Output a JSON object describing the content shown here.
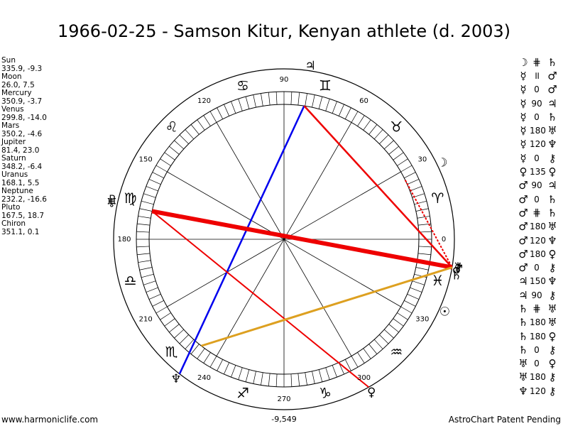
{
  "title": "1966-02-25 - Samson Kitur, Kenyan athlete (d. 2003)",
  "footer_left": "www.harmoniclife.com",
  "footer_right": "AstroChart Patent Pending",
  "footer_center": "-9,549",
  "planets": [
    {
      "name": "Sun",
      "values": "335.9, -9.3"
    },
    {
      "name": "Moon",
      "values": "26.0, 7.5"
    },
    {
      "name": "Mercury",
      "values": "350.9, -3.7"
    },
    {
      "name": "Venus",
      "values": "299.8, -14.0"
    },
    {
      "name": "Mars",
      "values": "350.2, -4.6"
    },
    {
      "name": "Jupiter",
      "values": "81.4, 23.0"
    },
    {
      "name": "Saturn",
      "values": "348.2, -6.4"
    },
    {
      "name": "Uranus",
      "values": "168.1, 5.5"
    },
    {
      "name": "Neptune",
      "values": "232.2, -16.6"
    },
    {
      "name": "Pluto",
      "values": "167.5, 18.7"
    },
    {
      "name": "Chiron",
      "values": "351.1, 0.1"
    }
  ],
  "degree_labels": [
    {
      "deg": 0,
      "text": "0"
    },
    {
      "deg": 30,
      "text": "30"
    },
    {
      "deg": 60,
      "text": "60"
    },
    {
      "deg": 90,
      "text": "90"
    },
    {
      "deg": 120,
      "text": "120"
    },
    {
      "deg": 150,
      "text": "150"
    },
    {
      "deg": 180,
      "text": "180"
    },
    {
      "deg": 210,
      "text": "210"
    },
    {
      "deg": 240,
      "text": "240"
    },
    {
      "deg": 270,
      "text": "270"
    },
    {
      "deg": 300,
      "text": "300"
    },
    {
      "deg": 330,
      "text": "330"
    }
  ],
  "zodiac_signs": [
    {
      "deg": 15,
      "glyph": "♈"
    },
    {
      "deg": 45,
      "glyph": "♉"
    },
    {
      "deg": 75,
      "glyph": "♊"
    },
    {
      "deg": 105,
      "glyph": "♋"
    },
    {
      "deg": 135,
      "glyph": "♌"
    },
    {
      "deg": 165,
      "glyph": "♍"
    },
    {
      "deg": 195,
      "glyph": "♎"
    },
    {
      "deg": 225,
      "glyph": "♏"
    },
    {
      "deg": 255,
      "glyph": "♐"
    },
    {
      "deg": 285,
      "glyph": "♑"
    },
    {
      "deg": 315,
      "glyph": "♒"
    },
    {
      "deg": 345,
      "glyph": "♓"
    }
  ],
  "planet_glyphs": [
    {
      "deg": 26.0,
      "glyph": "☽"
    },
    {
      "deg": 81.4,
      "glyph": "♃"
    },
    {
      "deg": 168.0,
      "glyph": "♅"
    },
    {
      "deg": 167.0,
      "glyph": "♇"
    },
    {
      "deg": 232.2,
      "glyph": "♆"
    },
    {
      "deg": 299.8,
      "glyph": "♀"
    },
    {
      "deg": 335.9,
      "glyph": "☉"
    },
    {
      "deg": 348.2,
      "glyph": "♄"
    },
    {
      "deg": 350.2,
      "glyph": "♂"
    },
    {
      "deg": 350.9,
      "glyph": "☿"
    },
    {
      "deg": 351.1,
      "glyph": "⚷"
    }
  ],
  "aspect_lines": [
    {
      "from": 81.4,
      "to": 232.2,
      "color": "#0000ee",
      "width": 2.5
    },
    {
      "from": 81.4,
      "to": 350.5,
      "color": "#ee0000",
      "width": 2.5
    },
    {
      "from": 168.0,
      "to": 299.8,
      "color": "#ee0000",
      "width": 2
    },
    {
      "from": 168.0,
      "to": 350.5,
      "color": "#ee0000",
      "width": 6
    },
    {
      "from": 232.2,
      "to": 350.5,
      "color": "#dda020",
      "width": 3
    },
    {
      "from": 26.0,
      "to": 350.5,
      "color": "#ee0000",
      "width": 2,
      "dashed": true
    }
  ],
  "aspects": [
    {
      "p1": "☽",
      "a": "⋕",
      "p2": "♄",
      "orb": ""
    },
    {
      "p1": "☿",
      "a": "॥",
      "p2": "♂",
      "orb": ""
    },
    {
      "p1": "☿",
      "a": "0",
      "p2": "♂",
      "orb": ""
    },
    {
      "p1": "☿",
      "a": "90",
      "p2": "♃",
      "orb": ""
    },
    {
      "p1": "☿",
      "a": "0",
      "p2": "♄",
      "orb": ""
    },
    {
      "p1": "☿",
      "a": "180",
      "p2": "♅",
      "orb": ""
    },
    {
      "p1": "☿",
      "a": "120",
      "p2": "♆",
      "orb": ""
    },
    {
      "p1": "☿",
      "a": "0",
      "p2": "⚷",
      "orb": ""
    },
    {
      "p1": "♀",
      "a": "135",
      "p2": "♀",
      "orb": ""
    },
    {
      "p1": "♂",
      "a": "90",
      "p2": "♃",
      "orb": ""
    },
    {
      "p1": "♂",
      "a": "0",
      "p2": "♄",
      "orb": ""
    },
    {
      "p1": "♂",
      "a": "⋕",
      "p2": "♄",
      "orb": ""
    },
    {
      "p1": "♂",
      "a": "180",
      "p2": "♅",
      "orb": ""
    },
    {
      "p1": "♂",
      "a": "120",
      "p2": "♆",
      "orb": ""
    },
    {
      "p1": "♂",
      "a": "180",
      "p2": "♀",
      "orb": ""
    },
    {
      "p1": "♂",
      "a": "0",
      "p2": "⚷",
      "orb": ""
    },
    {
      "p1": "♃",
      "a": "150",
      "p2": "♆",
      "orb": ""
    },
    {
      "p1": "♃",
      "a": "90",
      "p2": "⚷",
      "orb": ""
    },
    {
      "p1": "♄",
      "a": "⋕",
      "p2": "♅",
      "orb": ""
    },
    {
      "p1": "♄",
      "a": "180",
      "p2": "♅",
      "orb": ""
    },
    {
      "p1": "♄",
      "a": "180",
      "p2": "♀",
      "orb": ""
    },
    {
      "p1": "♄",
      "a": "0",
      "p2": "⚷",
      "orb": ""
    },
    {
      "p1": "♅",
      "a": "0",
      "p2": "♀",
      "orb": ""
    },
    {
      "p1": "♅",
      "a": "180",
      "p2": "⚷",
      "orb": ""
    },
    {
      "p1": "♆",
      "a": "120",
      "p2": "⚷",
      "orb": ""
    }
  ]
}
